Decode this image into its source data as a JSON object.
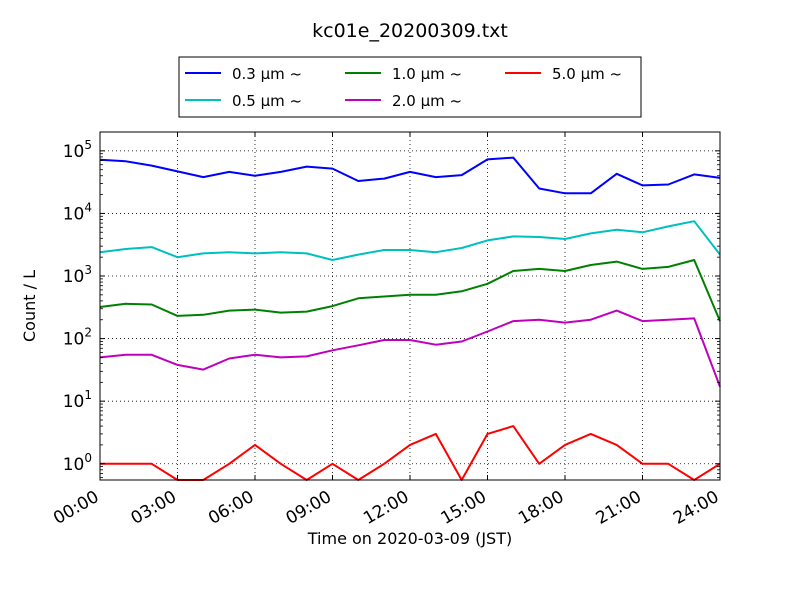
{
  "chart_data": {
    "type": "line",
    "title": "kc01e_20200309.txt",
    "xlabel": "Time on 2020-03-09 (JST)",
    "ylabel": "Count / L",
    "yscale": "log",
    "ylim": [
      0.55,
      200000
    ],
    "xlim": [
      "00:00",
      "24:00"
    ],
    "x_ticks": [
      "00:00",
      "03:00",
      "06:00",
      "09:00",
      "12:00",
      "15:00",
      "18:00",
      "21:00",
      "24:00"
    ],
    "y_ticks": [
      {
        "value": 1,
        "base": "10",
        "exp": "0"
      },
      {
        "value": 10,
        "base": "10",
        "exp": "1"
      },
      {
        "value": 100,
        "base": "10",
        "exp": "2"
      },
      {
        "value": 1000,
        "base": "10",
        "exp": "3"
      },
      {
        "value": 10000,
        "base": "10",
        "exp": "4"
      },
      {
        "value": 100000,
        "base": "10",
        "exp": "5"
      }
    ],
    "grid": true,
    "legend_position": "top",
    "x_hours": [
      0,
      1,
      2,
      3,
      4,
      5,
      6,
      7,
      8,
      9,
      10,
      11,
      12,
      13,
      14,
      15,
      16,
      17,
      18,
      19,
      20,
      21,
      22,
      23,
      24
    ],
    "series": [
      {
        "name": "0.3 μm ~",
        "color": "#0000ff",
        "values": [
          72000,
          68000,
          58000,
          47000,
          38000,
          46000,
          40000,
          46000,
          56000,
          52000,
          33000,
          36000,
          46000,
          38000,
          41000,
          73000,
          78000,
          25000,
          21000,
          21000,
          43000,
          28000,
          29000,
          42000,
          37000
        ]
      },
      {
        "name": "0.5 μm ~",
        "color": "#00bfbf",
        "values": [
          2400,
          2700,
          2900,
          2000,
          2300,
          2400,
          2300,
          2400,
          2300,
          1800,
          2200,
          2600,
          2600,
          2400,
          2800,
          3700,
          4300,
          4200,
          3900,
          4800,
          5500,
          5000,
          6200,
          7500,
          2200
        ]
      },
      {
        "name": "1.0 μm ~",
        "color": "#008000",
        "values": [
          320,
          360,
          350,
          230,
          240,
          280,
          290,
          260,
          270,
          330,
          440,
          470,
          500,
          500,
          570,
          750,
          1200,
          1300,
          1200,
          1500,
          1700,
          1300,
          1400,
          1800,
          190
        ]
      },
      {
        "name": "2.0 μm ~",
        "color": "#bf00bf",
        "values": [
          50,
          55,
          55,
          38,
          32,
          48,
          55,
          50,
          52,
          65,
          78,
          95,
          95,
          80,
          90,
          130,
          190,
          200,
          180,
          200,
          280,
          190,
          200,
          210,
          17
        ]
      },
      {
        "name": "5.0 μm ~",
        "color": "#ff0000",
        "values": [
          1,
          1,
          1,
          0.55,
          0.55,
          1,
          2,
          1,
          0.55,
          1,
          0.55,
          1,
          2,
          3,
          0.55,
          3,
          4,
          1,
          2,
          3,
          2,
          1,
          1,
          0.55,
          1
        ]
      }
    ],
    "legend_rows": [
      [
        "0.3 μm ~",
        "1.0 μm ~",
        "5.0 μm ~"
      ],
      [
        "0.5 μm ~",
        "2.0 μm ~"
      ]
    ]
  }
}
